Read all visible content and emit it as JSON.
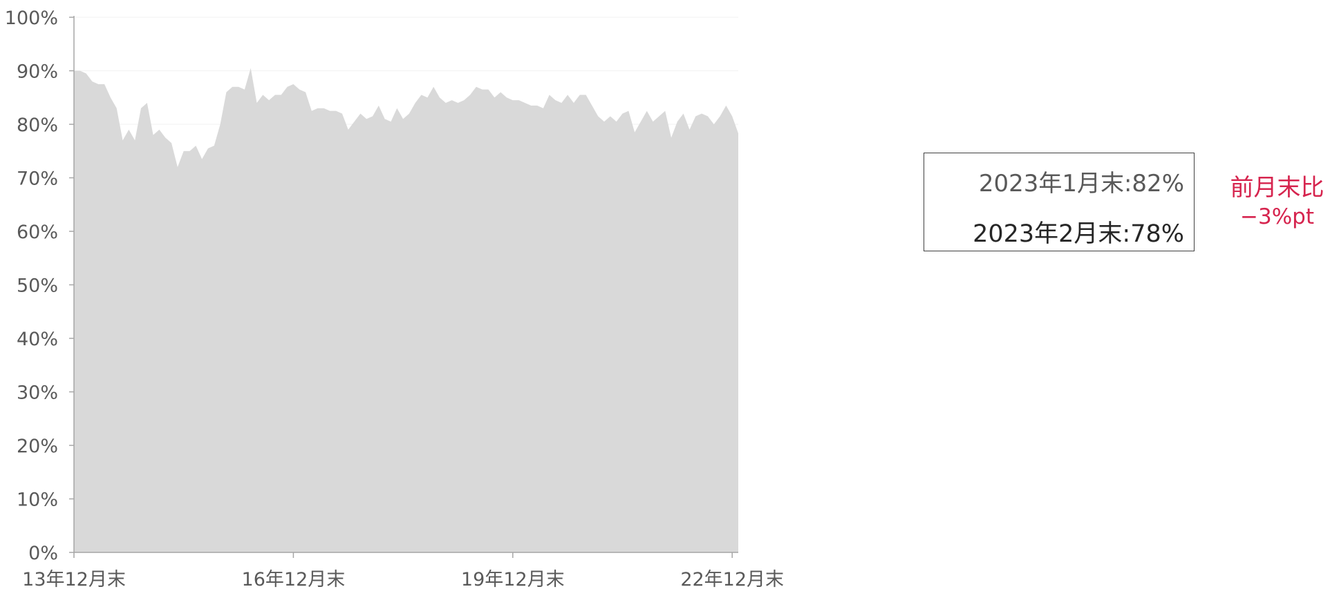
{
  "chart_data": {
    "type": "area",
    "x_tick_labels": [
      "13年12月末",
      "16年12月末",
      "19年12月末",
      "22年12月末"
    ],
    "x_tick_index": [
      0,
      36,
      72,
      108
    ],
    "y_tick_labels": [
      "0%",
      "10%",
      "20%",
      "30%",
      "40%",
      "50%",
      "60%",
      "70%",
      "80%",
      "90%",
      "100%"
    ],
    "ylim": [
      0,
      100
    ],
    "grid": true,
    "series_color": "#d9d9d9",
    "values": [
      90,
      90,
      89.5,
      88,
      87.5,
      87.5,
      85,
      83,
      77,
      79,
      77,
      83,
      84,
      78,
      79,
      77.5,
      76.5,
      72,
      75,
      75,
      76,
      73.5,
      75.5,
      76,
      80,
      86,
      87,
      87,
      86.5,
      90.5,
      84,
      85.5,
      84.5,
      85.5,
      85.5,
      87,
      87.5,
      86.5,
      86,
      82.5,
      83,
      83,
      82.5,
      82.5,
      82,
      79,
      80.5,
      82,
      81,
      81.5,
      83.5,
      81,
      80.5,
      83,
      81,
      82,
      84,
      85.5,
      85,
      87,
      85,
      84,
      84.5,
      84,
      84.5,
      85.5,
      87,
      86.5,
      86.5,
      85,
      86,
      85,
      84.5,
      84.5,
      84,
      83.5,
      83.5,
      83,
      85.5,
      84.5,
      84,
      85.5,
      84,
      85.5,
      85.5,
      83.5,
      81.5,
      80.5,
      81.5,
      80.5,
      82,
      82.5,
      78.5,
      80.5,
      82.5,
      80.5,
      81.5,
      82.5,
      77.5,
      80.5,
      82,
      79,
      81.5,
      82,
      81.5,
      80,
      81.5,
      83.5,
      81.5,
      78.3
    ]
  },
  "legend": {
    "prev_line": "2023年1月末:82%",
    "curr_line": "2023年2月末:78%"
  },
  "change_note": {
    "line1": "前月末比",
    "line2": "−3%pt"
  }
}
